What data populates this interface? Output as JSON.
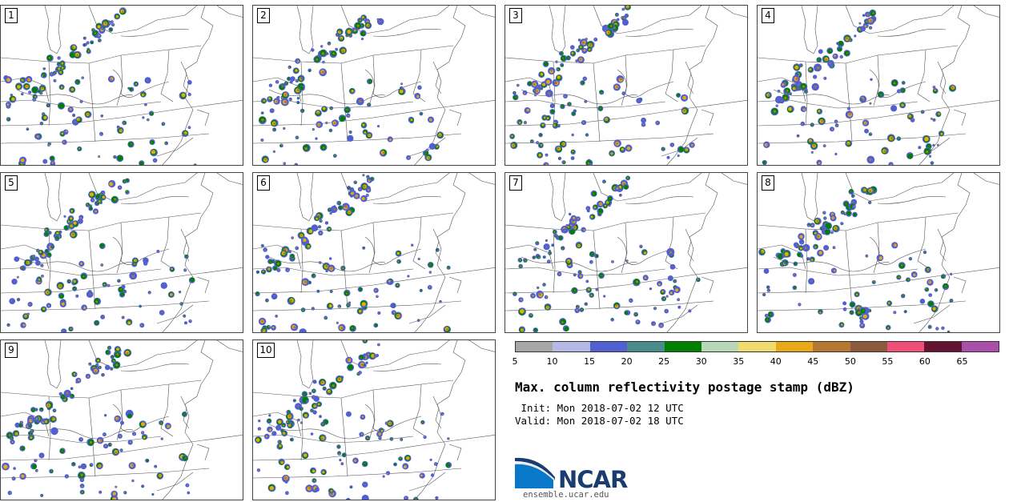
{
  "panels": [
    {
      "label": "1"
    },
    {
      "label": "2"
    },
    {
      "label": "3"
    },
    {
      "label": "4"
    },
    {
      "label": "5"
    },
    {
      "label": "6"
    },
    {
      "label": "7"
    },
    {
      "label": "8"
    },
    {
      "label": "9"
    },
    {
      "label": "10"
    }
  ],
  "colorbar": {
    "colors": [
      "#a6a6a6",
      "#b4b9e6",
      "#5060d0",
      "#4a8c8c",
      "#008000",
      "#b8d8b8",
      "#f0dc6e",
      "#e8a818",
      "#b47832",
      "#8c5a3c",
      "#f05078",
      "#641432",
      "#aa50aa"
    ],
    "ticks": [
      "5",
      "10",
      "15",
      "20",
      "25",
      "30",
      "35",
      "40",
      "45",
      "50",
      "55",
      "60",
      "65"
    ]
  },
  "title": "Max. column reflectivity postage stamp (dBZ)",
  "init": " Init: Mon 2018-07-02 12 UTC",
  "valid": "Valid: Mon 2018-07-02 18 UTC",
  "logo": {
    "name": "NCAR",
    "url": "ensemble.ucar.edu"
  }
}
